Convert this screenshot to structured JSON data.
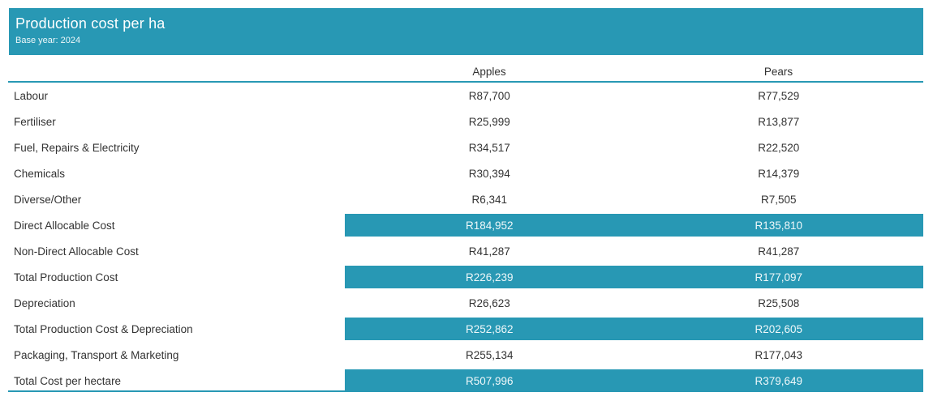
{
  "banner": {
    "title": "Production cost per ha",
    "subtitle": "Base year: 2024"
  },
  "table": {
    "columns": [
      "Apples",
      "Pears"
    ],
    "rows": [
      {
        "label": "Labour",
        "apples": "R87,700",
        "pears": "R77,529",
        "highlight": false
      },
      {
        "label": "Fertiliser",
        "apples": "R25,999",
        "pears": "R13,877",
        "highlight": false
      },
      {
        "label": "Fuel, Repairs & Electricity",
        "apples": "R34,517",
        "pears": "R22,520",
        "highlight": false
      },
      {
        "label": "Chemicals",
        "apples": "R30,394",
        "pears": "R14,379",
        "highlight": false
      },
      {
        "label": "Diverse/Other",
        "apples": "R6,341",
        "pears": "R7,505",
        "highlight": false
      },
      {
        "label": "Direct Allocable Cost",
        "apples": "R184,952",
        "pears": "R135,810",
        "highlight": true
      },
      {
        "label": "Non-Direct Allocable Cost",
        "apples": "R41,287",
        "pears": "R41,287",
        "highlight": false
      },
      {
        "label": "Total Production Cost",
        "apples": "R226,239",
        "pears": "R177,097",
        "highlight": true
      },
      {
        "label": "Depreciation",
        "apples": "R26,623",
        "pears": "R25,508",
        "highlight": false
      },
      {
        "label": "Total Production Cost & Depreciation",
        "apples": "R252,862",
        "pears": "R202,605",
        "highlight": true
      },
      {
        "label": "Packaging, Transport & Marketing",
        "apples": "R255,134",
        "pears": "R177,043",
        "highlight": false
      },
      {
        "label": "Total Cost per hectare",
        "apples": "R507,996",
        "pears": "R379,649",
        "highlight": true
      }
    ]
  },
  "colors": {
    "accent_teal": "#2898b4",
    "text_dark": "#333333",
    "highlight_text": "#eef8fb"
  },
  "chart_data": {
    "type": "table",
    "title": "Production cost per ha",
    "subtitle": "Base year: 2024",
    "categories": [
      "Labour",
      "Fertiliser",
      "Fuel, Repairs & Electricity",
      "Chemicals",
      "Diverse/Other",
      "Direct Allocable Cost",
      "Non-Direct Allocable Cost",
      "Total Production Cost",
      "Depreciation",
      "Total Production Cost & Depreciation",
      "Packaging, Transport & Marketing",
      "Total Cost per hectare"
    ],
    "series": [
      {
        "name": "Apples",
        "values": [
          87700,
          25999,
          34517,
          30394,
          6341,
          184952,
          41287,
          226239,
          26623,
          252862,
          255134,
          507996
        ]
      },
      {
        "name": "Pears",
        "values": [
          77529,
          13877,
          22520,
          14379,
          7505,
          135810,
          41287,
          177097,
          25508,
          202605,
          177043,
          379649
        ]
      }
    ],
    "currency": "R",
    "highlighted_rows": [
      "Direct Allocable Cost",
      "Total Production Cost",
      "Total Production Cost & Depreciation",
      "Total Cost per hectare"
    ]
  }
}
